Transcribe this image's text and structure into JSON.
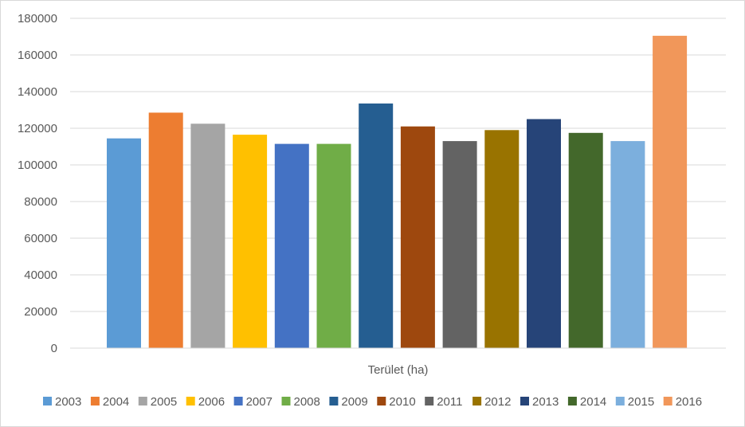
{
  "chart_data": {
    "type": "bar",
    "xlabel": "Terület (ha)",
    "ylim": [
      0,
      180000
    ],
    "yticks": [
      0,
      20000,
      40000,
      60000,
      80000,
      100000,
      120000,
      140000,
      160000,
      180000
    ],
    "grid": true,
    "legend_position": "bottom",
    "series": [
      {
        "name": "2003",
        "values": [
          114500
        ],
        "color": "#5b9bd5"
      },
      {
        "name": "2004",
        "values": [
          128500
        ],
        "color": "#ed7d31"
      },
      {
        "name": "2005",
        "values": [
          122500
        ],
        "color": "#a5a5a5"
      },
      {
        "name": "2006",
        "values": [
          116500
        ],
        "color": "#ffc000"
      },
      {
        "name": "2007",
        "values": [
          111500
        ],
        "color": "#4472c4"
      },
      {
        "name": "2008",
        "values": [
          111500
        ],
        "color": "#70ad47"
      },
      {
        "name": "2009",
        "values": [
          133500
        ],
        "color": "#255e91"
      },
      {
        "name": "2010",
        "values": [
          121000
        ],
        "color": "#9e480e"
      },
      {
        "name": "2011",
        "values": [
          113000
        ],
        "color": "#636363"
      },
      {
        "name": "2012",
        "values": [
          119000
        ],
        "color": "#997300"
      },
      {
        "name": "2013",
        "values": [
          125000
        ],
        "color": "#264478"
      },
      {
        "name": "2014",
        "values": [
          117500
        ],
        "color": "#43682b"
      },
      {
        "name": "2015",
        "values": [
          113000
        ],
        "color": "#7cafdd"
      },
      {
        "name": "2016",
        "values": [
          170500
        ],
        "color": "#f1975a"
      }
    ]
  }
}
